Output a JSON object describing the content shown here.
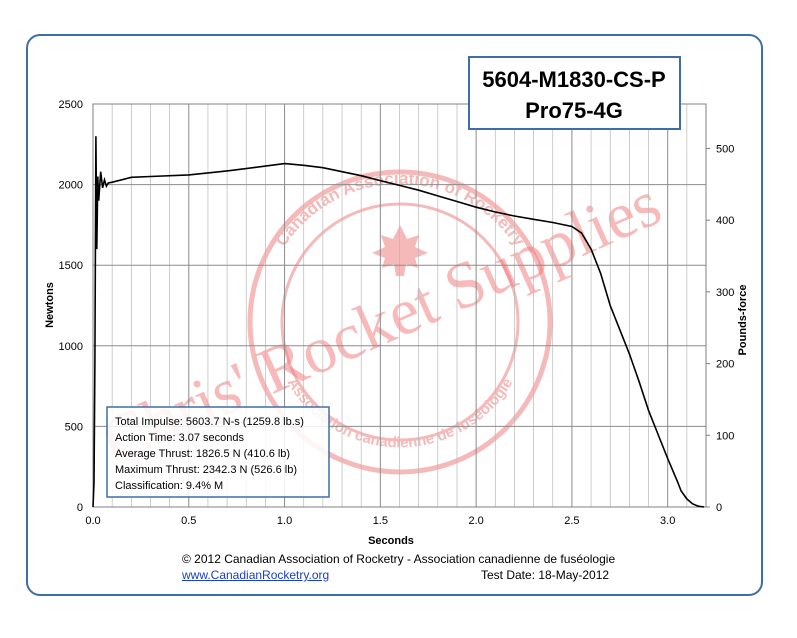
{
  "title_lines": [
    "5604-M1830-CS-P",
    "Pro75-4G"
  ],
  "watermark": {
    "main": "Chris' Rocket Supplies",
    "seal_top": "Canadian Association of Rocketry",
    "seal_bottom": "Association canadienne de fuséologie"
  },
  "info_box": [
    "Total Impulse: 5603.7 N-s (1259.8 lb.s)",
    "Action Time: 3.07 seconds",
    "Average Thrust: 1826.5 N (410.6 lb)",
    "Maximum Thrust: 2342.3 N (526.6 lb)",
    "Classification: 9.4% M"
  ],
  "footer": {
    "copyright": "© 2012 Canadian Association of Rocketry - Association canadienne de fuséologie",
    "website": "www.CanadianRocketry.org",
    "test_date": "Test  Date: 18-May-2012"
  },
  "colors": {
    "frame": "#3f6ea6",
    "curve": "#000000",
    "watermark": "#f08080"
  },
  "chart_data": {
    "type": "line",
    "xlabel": "Seconds",
    "ylabel": "Newtons",
    "y2label": "Pounds-force",
    "xlim": [
      0,
      3.2
    ],
    "ylim": [
      0,
      2500
    ],
    "y2lim": [
      0,
      562.0
    ],
    "grid": true,
    "x_ticks": [
      "0.0",
      "0.5",
      "1.0",
      "1.5",
      "2.0",
      "2.5",
      "3.0"
    ],
    "y_ticks": [
      "0",
      "500",
      "1000",
      "1500",
      "2000",
      "2500"
    ],
    "y2_ticks": [
      "0",
      "100",
      "200",
      "300",
      "400",
      "500"
    ],
    "x": [
      0.0,
      0.005,
      0.01,
      0.015,
      0.02,
      0.025,
      0.03,
      0.04,
      0.05,
      0.06,
      0.07,
      0.08,
      0.1,
      0.15,
      0.2,
      0.3,
      0.5,
      0.7,
      0.9,
      1.0,
      1.1,
      1.2,
      1.3,
      1.4,
      1.5,
      1.6,
      1.7,
      1.8,
      1.9,
      2.0,
      2.1,
      2.2,
      2.3,
      2.4,
      2.5,
      2.55,
      2.6,
      2.65,
      2.7,
      2.75,
      2.8,
      2.85,
      2.9,
      2.95,
      3.0,
      3.05,
      3.07,
      3.1,
      3.13,
      3.16,
      3.19
    ],
    "y": [
      0,
      150,
      900,
      2300,
      1600,
      2050,
      1900,
      2080,
      1980,
      2030,
      1990,
      2010,
      2015,
      2030,
      2045,
      2050,
      2060,
      2085,
      2115,
      2130,
      2120,
      2105,
      2080,
      2055,
      2025,
      1995,
      1965,
      1930,
      1895,
      1860,
      1830,
      1805,
      1785,
      1765,
      1740,
      1700,
      1600,
      1450,
      1250,
      1100,
      950,
      780,
      600,
      450,
      300,
      160,
      100,
      50,
      20,
      5,
      0
    ]
  }
}
